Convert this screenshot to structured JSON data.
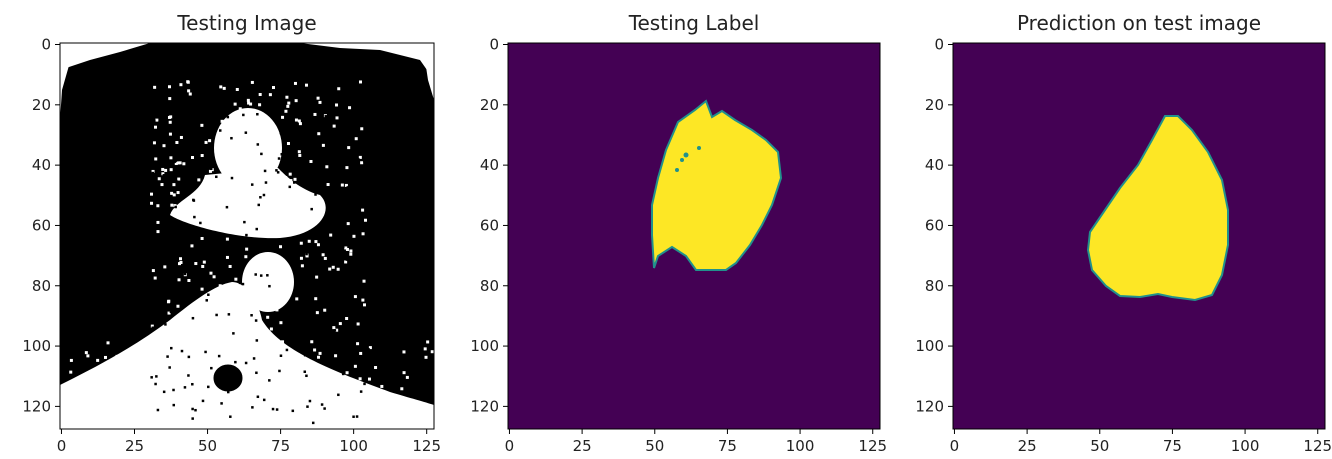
{
  "chart_data": [
    {
      "type": "heatmap",
      "title": "Testing Image",
      "colormap": "binary (black/white)",
      "colors": {
        "background": "#000000",
        "foreground": "#ffffff"
      },
      "xlim": [
        0,
        128
      ],
      "ylim": [
        128,
        0
      ],
      "xticks": [
        0,
        25,
        50,
        75,
        100,
        125
      ],
      "yticks": [
        0,
        20,
        40,
        60,
        80,
        100,
        120
      ]
    },
    {
      "type": "heatmap",
      "title": "Testing Label",
      "colormap": "viridis",
      "colors": {
        "background": "#440154",
        "foreground": "#fde725",
        "edge": "#21918c"
      },
      "xlim": [
        0,
        128
      ],
      "ylim": [
        128,
        0
      ],
      "xticks": [
        0,
        25,
        50,
        75,
        100,
        125
      ],
      "yticks": [
        0,
        20,
        40,
        60,
        80,
        100,
        120
      ]
    },
    {
      "type": "heatmap",
      "title": "Prediction on test image",
      "colormap": "viridis",
      "colors": {
        "background": "#440154",
        "foreground": "#fde725",
        "edge": "#21918c"
      },
      "xlim": [
        0,
        128
      ],
      "ylim": [
        128,
        0
      ],
      "xticks": [
        0,
        25,
        50,
        75,
        100,
        125
      ],
      "yticks": [
        0,
        20,
        40,
        60,
        80,
        100,
        120
      ]
    }
  ]
}
